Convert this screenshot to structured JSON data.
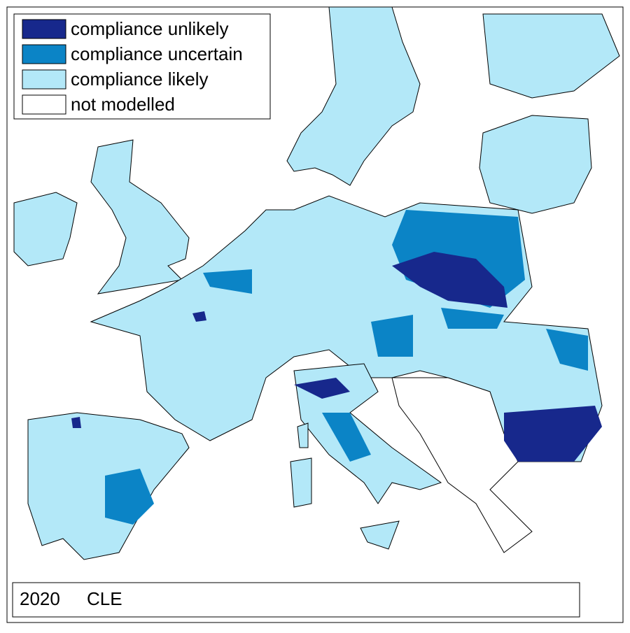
{
  "legend": {
    "items": [
      {
        "label": "compliance unlikely",
        "color": "#17288c"
      },
      {
        "label": "compliance uncertain",
        "color": "#0b84c6"
      },
      {
        "label": "compliance likely",
        "color": "#b3e8f8"
      },
      {
        "label": "not modelled",
        "color": "#ffffff"
      }
    ]
  },
  "caption": {
    "year": "2020",
    "scenario": "CLE"
  }
}
